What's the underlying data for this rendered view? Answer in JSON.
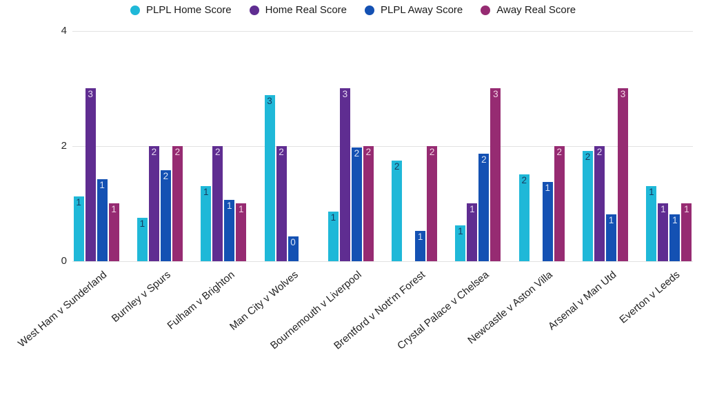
{
  "chart_data": {
    "type": "bar",
    "title": "",
    "legend_position": "top",
    "grid": true,
    "ylim": [
      0,
      4
    ],
    "yticks": [
      0,
      2,
      4
    ],
    "categories": [
      "West Ham v Sunderland",
      "Burnley v Spurs",
      "Fulham v Brighton",
      "Man City v Wolves",
      "Bournemouth v Liverpool",
      "Brentford v Nott'm Forest",
      "Crystal Palace v Chelsea",
      "Newcastle v Aston Villa",
      "Arsenal v Man Utd",
      "Everton v Leeds"
    ],
    "series": [
      {
        "name": "PLPL Home Score",
        "color": "#1FB8D8",
        "label_color": "#17395E",
        "values": [
          1.13,
          0.76,
          1.3,
          2.89,
          0.86,
          1.75,
          0.62,
          1.51,
          1.92,
          1.3
        ],
        "bar_labels": [
          "1",
          "1",
          "1",
          "3",
          "1",
          "2",
          "1",
          "2",
          "2",
          "1"
        ]
      },
      {
        "name": "Home Real Score",
        "color": "#5F2D91",
        "label_color": "#E6D8F2",
        "values": [
          3,
          2,
          2,
          2,
          3,
          0,
          1,
          0,
          2,
          1
        ],
        "bar_labels": [
          "3",
          "2",
          "2",
          "2",
          "3",
          "",
          "1",
          "",
          "2",
          "1"
        ]
      },
      {
        "name": "PLPL Away Score",
        "color": "#1451B3",
        "label_color": "#DCE6F7",
        "values": [
          1.42,
          1.58,
          1.06,
          0.43,
          1.98,
          0.53,
          1.87,
          1.38,
          0.82,
          0.81
        ],
        "bar_labels": [
          "1",
          "2",
          "1",
          "0",
          "2",
          "1",
          "2",
          "1",
          "1",
          "1"
        ]
      },
      {
        "name": "Away Real Score",
        "color": "#962B72",
        "label_color": "#F2D4E5",
        "values": [
          1,
          2,
          1,
          0,
          2,
          2,
          3,
          2,
          3,
          1
        ],
        "bar_labels": [
          "1",
          "2",
          "1",
          "",
          "2",
          "2",
          "3",
          "2",
          "3",
          "1"
        ]
      }
    ]
  }
}
